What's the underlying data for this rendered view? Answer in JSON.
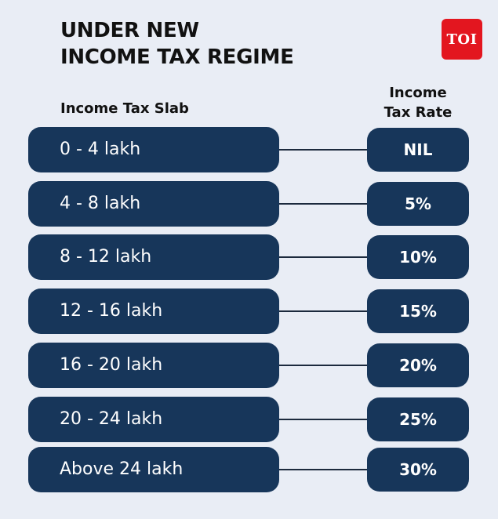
{
  "header": {
    "title_line1": "UNDER NEW",
    "title_line2": "INCOME TAX REGIME",
    "logo_text": "TOI"
  },
  "columns": {
    "slab_header": "Income Tax Slab",
    "rate_header_line1": "Income",
    "rate_header_line2": "Tax Rate"
  },
  "rows": [
    {
      "slab": "0 - 4 lakh",
      "rate": "NIL"
    },
    {
      "slab": "4 - 8 lakh",
      "rate": "5%"
    },
    {
      "slab": "8 - 12 lakh",
      "rate": "10%"
    },
    {
      "slab": "12 - 16 lakh",
      "rate": "15%"
    },
    {
      "slab": "16 - 20 lakh",
      "rate": "20%"
    },
    {
      "slab": "20 - 24 lakh",
      "rate": "25%"
    },
    {
      "slab": "Above 24 lakh",
      "rate": "30%"
    }
  ],
  "colors": {
    "background": "#e9edf5",
    "pill": "#17365a",
    "logo": "#e3161f"
  }
}
